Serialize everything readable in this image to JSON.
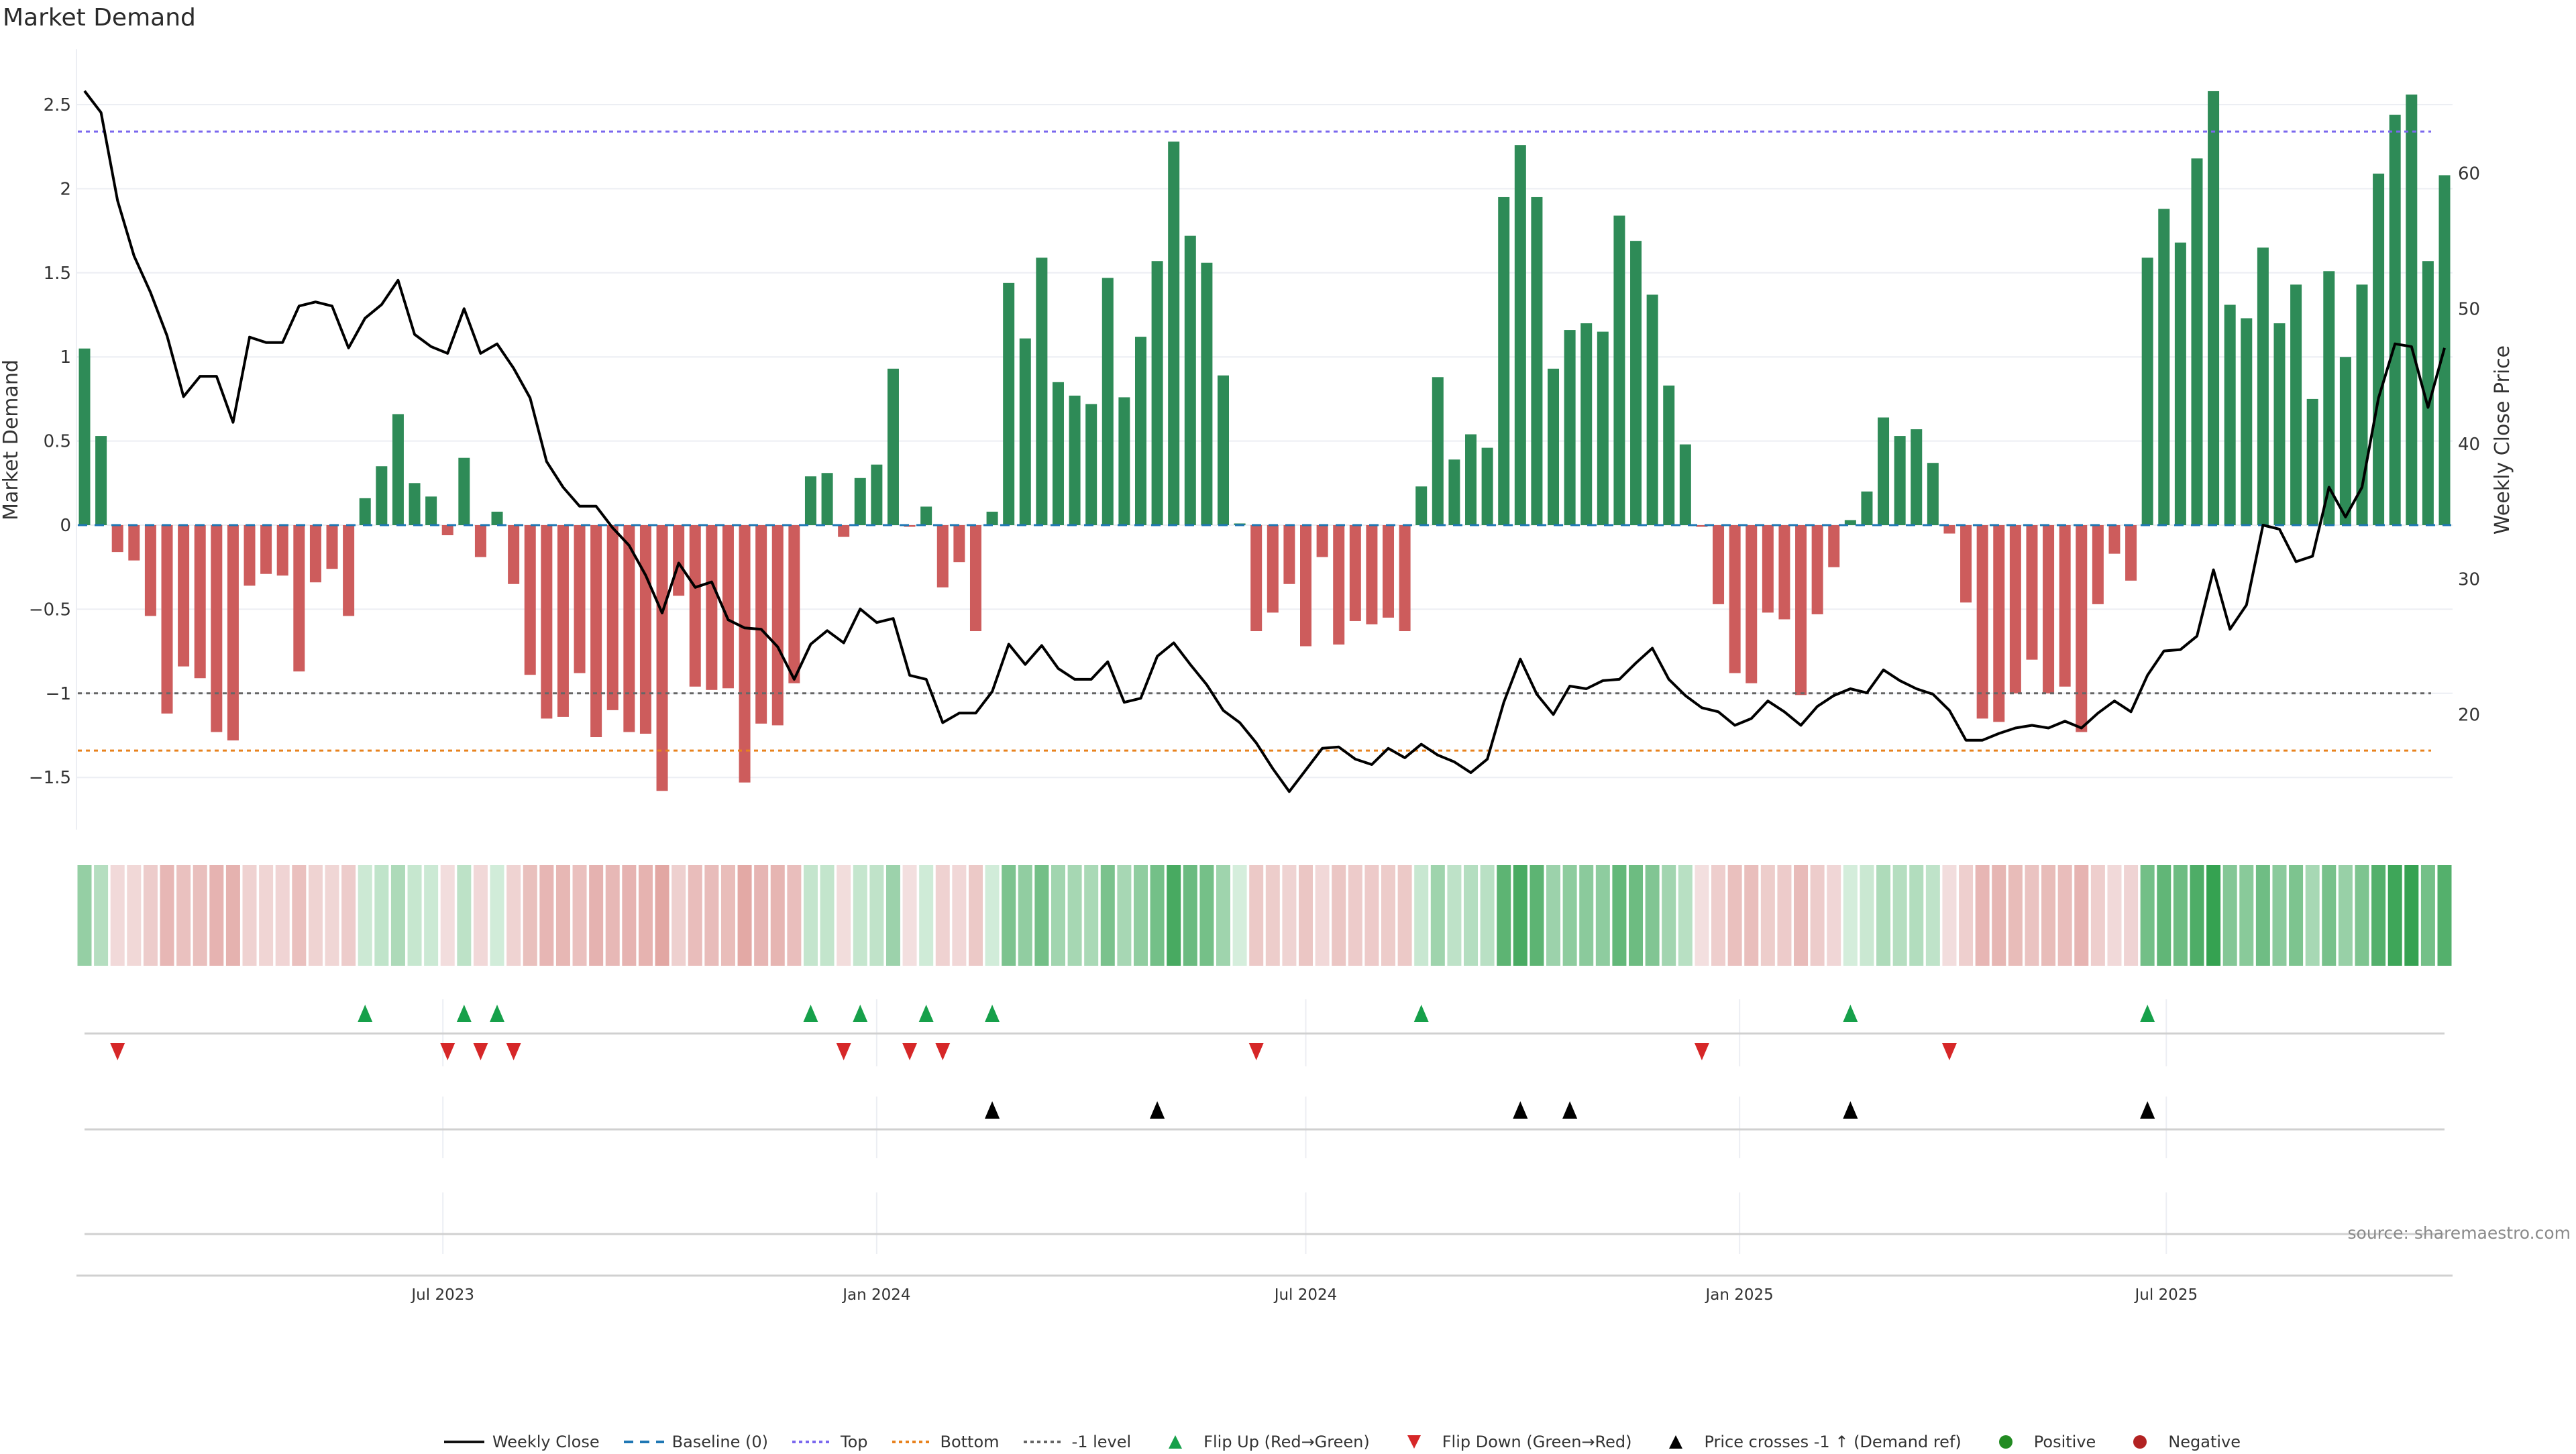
{
  "title": "Market Demand",
  "source": "source: sharemaestro.com",
  "colors": {
    "positive_bar": "#2e8b57",
    "negative_bar": "#cd5c5c",
    "price_line": "#000000",
    "baseline": "#1f77b4",
    "top": "#7b68ee",
    "bottom": "#e8821e",
    "minus_one": "#666666",
    "flip_up": "#16a04a",
    "flip_down": "#d62728",
    "cross": "#000000",
    "heat_pos_light": "#d6eedd",
    "heat_pos_dark": "#34a150",
    "heat_neg_light": "#f3dfdf",
    "heat_neg_dark": "#d7837d"
  },
  "legend": [
    {
      "label": "Weekly Close",
      "icon": "solid-line"
    },
    {
      "label": "Baseline (0)",
      "icon": "dashed-line-blue"
    },
    {
      "label": "Top",
      "icon": "dotted-line-purple"
    },
    {
      "label": "Bottom",
      "icon": "dotted-line-orange"
    },
    {
      "label": "-1 level",
      "icon": "dotted-line-gray"
    },
    {
      "label": "Flip Up (Red→Green)",
      "icon": "triangle-up-green"
    },
    {
      "label": "Flip Down (Green→Red)",
      "icon": "triangle-down-red"
    },
    {
      "label": "Price crosses -1 ↑ (Demand ref)",
      "icon": "triangle-up-black"
    },
    {
      "label": "Positive",
      "icon": "circle-green"
    },
    {
      "label": "Negative",
      "icon": "circle-red"
    }
  ],
  "chart_data": {
    "type": "bar",
    "title": "Market Demand",
    "ylabel": "Market Demand",
    "y2label": "Weekly Close Price",
    "x_start": "2023-01-30",
    "x_step_days": 7,
    "ylim": [
      -1.81,
      2.83
    ],
    "yticks": [
      {
        "v": -1.5,
        "label": "−1.5"
      },
      {
        "v": -1,
        "label": "−1"
      },
      {
        "v": -0.5,
        "label": "−0.5"
      },
      {
        "v": 0,
        "label": "0"
      },
      {
        "v": 0.5,
        "label": "0.5"
      },
      {
        "v": 1,
        "label": "1"
      },
      {
        "v": 1.5,
        "label": "1.5"
      },
      {
        "v": 2,
        "label": "2"
      },
      {
        "v": 2.5,
        "label": "2.5"
      }
    ],
    "y2_map": {
      "price_at_zero": 34.0,
      "price_per_unit": 12.435
    },
    "y2ticks": [
      {
        "v": 20,
        "label": "20"
      },
      {
        "v": 30,
        "label": "30"
      },
      {
        "v": 40,
        "label": "40"
      },
      {
        "v": 50,
        "label": "50"
      },
      {
        "v": 60,
        "label": "60"
      }
    ],
    "xticks": [
      {
        "date": "2023-07-01",
        "label": "Jul 2023"
      },
      {
        "date": "2024-01-01",
        "label": "Jan 2024"
      },
      {
        "date": "2024-07-01",
        "label": "Jul 2024"
      },
      {
        "date": "2025-01-01",
        "label": "Jan 2025"
      },
      {
        "date": "2025-07-01",
        "label": "Jul 2025"
      }
    ],
    "reference_lines": {
      "baseline": 0,
      "top": 2.34,
      "bottom": -1.34,
      "minus_one": -1
    },
    "demand": [
      1.05,
      0.53,
      -0.16,
      -0.21,
      -0.54,
      -1.12,
      -0.84,
      -0.91,
      -1.23,
      -1.28,
      -0.36,
      -0.29,
      -0.3,
      -0.87,
      -0.34,
      -0.26,
      -0.54,
      0.16,
      0.35,
      0.66,
      0.25,
      0.17,
      -0.06,
      0.4,
      -0.19,
      0.08,
      -0.35,
      -0.89,
      -1.15,
      -1.14,
      -0.88,
      -1.26,
      -1.1,
      -1.23,
      -1.24,
      -1.58,
      -0.42,
      -0.96,
      -0.98,
      -0.97,
      -1.53,
      -1.18,
      -1.19,
      -0.94,
      0.29,
      0.31,
      -0.07,
      0.28,
      0.36,
      0.93,
      -0.01,
      0.11,
      -0.37,
      -0.22,
      -0.63,
      0.08,
      1.44,
      1.11,
      1.59,
      0.85,
      0.77,
      0.72,
      1.47,
      0.76,
      1.12,
      1.57,
      2.28,
      1.72,
      1.56,
      0.89,
      0.01,
      -0.63,
      -0.52,
      -0.35,
      -0.72,
      -0.19,
      -0.71,
      -0.57,
      -0.59,
      -0.55,
      -0.63,
      0.23,
      0.88,
      0.39,
      0.54,
      0.46,
      1.95,
      2.26,
      1.95,
      0.93,
      1.16,
      1.2,
      1.15,
      1.84,
      1.69,
      1.37,
      0.83,
      0.48,
      -0.01,
      -0.47,
      -0.88,
      -0.94,
      -0.52,
      -0.56,
      -1.01,
      -0.53,
      -0.25,
      0.03,
      0.2,
      0.64,
      0.53,
      0.57,
      0.37,
      -0.05,
      -0.46,
      -1.15,
      -1.17,
      -1.0,
      -0.8,
      -1.0,
      -0.96,
      -1.23,
      -0.47,
      -0.17,
      -0.33,
      1.59,
      1.88,
      1.68,
      2.18,
      2.58,
      1.31,
      1.23,
      1.65,
      1.2,
      1.43,
      0.75,
      1.51,
      1.0,
      1.43,
      2.09,
      2.44,
      2.56,
      1.57,
      2.08
    ],
    "weekly_close": [
      66.1,
      64.5,
      58.0,
      53.9,
      51.2,
      48.0,
      43.5,
      45.0,
      45.0,
      41.6,
      47.9,
      47.5,
      47.5,
      50.2,
      50.5,
      50.2,
      47.1,
      49.3,
      50.3,
      52.1,
      48.1,
      47.2,
      46.7,
      50.0,
      46.7,
      47.4,
      45.6,
      43.4,
      38.7,
      36.8,
      35.4,
      35.4,
      33.8,
      32.5,
      30.3,
      27.5,
      31.2,
      29.4,
      29.8,
      27.0,
      26.4,
      26.3,
      25.0,
      22.6,
      25.2,
      26.2,
      25.3,
      27.8,
      26.8,
      27.1,
      22.9,
      22.6,
      19.4,
      20.1,
      20.1,
      21.7,
      25.2,
      23.7,
      25.1,
      23.4,
      22.6,
      22.6,
      23.9,
      20.9,
      21.2,
      24.3,
      25.3,
      23.7,
      22.2,
      20.3,
      19.4,
      17.9,
      16.0,
      14.3,
      15.9,
      17.5,
      17.6,
      16.7,
      16.3,
      17.5,
      16.8,
      17.8,
      17.0,
      16.5,
      15.7,
      16.7,
      20.9,
      24.1,
      21.5,
      20.0,
      22.1,
      21.9,
      22.5,
      22.6,
      23.8,
      24.9,
      22.6,
      21.4,
      20.5,
      20.2,
      19.2,
      19.7,
      21.0,
      20.2,
      19.2,
      20.6,
      21.4,
      21.9,
      21.6,
      23.3,
      22.5,
      21.9,
      21.5,
      20.3,
      18.1,
      18.1,
      18.6,
      19.0,
      19.2,
      19.0,
      19.5,
      19.0,
      20.1,
      21.0,
      20.2,
      22.9,
      24.7,
      24.8,
      25.8,
      30.7,
      26.3,
      28.1,
      34.0,
      33.7,
      31.3,
      31.7,
      36.8,
      34.6,
      36.8,
      43.4,
      47.4,
      47.2,
      42.7,
      47.1
    ],
    "flip_up_weeks": [
      17,
      23,
      25,
      44,
      47,
      51,
      55,
      81,
      107,
      125
    ],
    "flip_down_weeks": [
      2,
      22,
      24,
      26,
      46,
      50,
      52,
      71,
      98,
      113
    ],
    "price_cross_weeks": [
      55,
      65,
      87,
      90,
      107,
      125
    ]
  }
}
